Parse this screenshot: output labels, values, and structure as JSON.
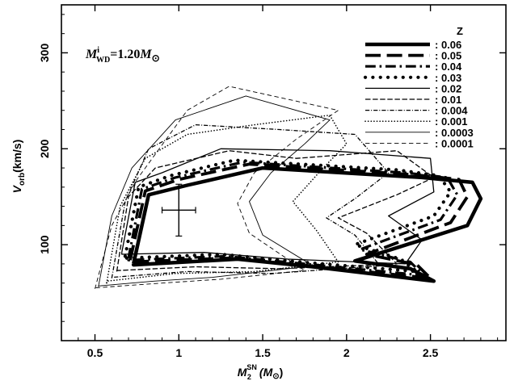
{
  "chart_data": {
    "type": "line",
    "title": "",
    "annotation": {
      "symbol": "M",
      "sup": "i",
      "sub": "WD",
      "text": "=1.20",
      "unit": "M",
      "unit_sub": "⊙"
    },
    "xlabel": {
      "symbol": "M",
      "sup": "SN",
      "sub": "2",
      "unit": "(M",
      "unit_sub": "⊙",
      "close": ")"
    },
    "ylabel": {
      "symbol": "V",
      "sub": "orb",
      "unit": "(km/s)"
    },
    "xlim": [
      0.3,
      2.95
    ],
    "ylim": [
      0,
      350
    ],
    "xticks": [
      0.5,
      1,
      1.5,
      2,
      2.5
    ],
    "xtick_labels": [
      "0.5",
      "1",
      "1.5",
      "2",
      "2.5"
    ],
    "yticks": [
      100,
      200,
      300
    ],
    "ytick_labels": [
      "100",
      "200",
      "300"
    ],
    "grid": false,
    "legend": {
      "title": "Z",
      "placement": "top-right"
    },
    "observation": {
      "x": 1.0,
      "y": 136,
      "xerr": 0.1,
      "yerr": 27
    },
    "series": [
      {
        "name": "0.06",
        "style": "solid",
        "width": 4.5,
        "x": [
          0.73,
          0.82,
          1.05,
          1.5,
          2.45,
          2.75,
          2.8,
          2.72,
          2.05,
          2.38,
          2.52,
          1.8,
          1.35,
          0.73,
          0.73
        ],
        "y": [
          80,
          152,
          162,
          180,
          170,
          165,
          148,
          120,
          83,
          75,
          62,
          77,
          85,
          79,
          80
        ]
      },
      {
        "name": "0.05",
        "style": "longdash",
        "width": 3.8,
        "x": [
          0.71,
          0.8,
          1.0,
          1.42,
          2.4,
          2.67,
          2.72,
          2.62,
          2.12,
          2.42,
          2.5,
          1.78,
          1.3,
          0.71,
          0.71
        ],
        "y": [
          84,
          156,
          168,
          184,
          173,
          168,
          150,
          123,
          90,
          79,
          65,
          78,
          86,
          82,
          84
        ]
      },
      {
        "name": "0.04",
        "style": "dashdot",
        "width": 3.2,
        "x": [
          0.7,
          0.78,
          0.98,
          1.38,
          2.35,
          2.6,
          2.66,
          2.56,
          2.08,
          2.38,
          2.46,
          1.75,
          1.28,
          0.7,
          0.7
        ],
        "y": [
          86,
          158,
          170,
          186,
          175,
          170,
          152,
          126,
          95,
          82,
          68,
          80,
          88,
          84,
          86
        ]
      },
      {
        "name": "0.03",
        "style": "dotted",
        "width": 4.2,
        "x": [
          0.68,
          0.76,
          0.95,
          1.33,
          2.3,
          2.55,
          2.62,
          2.52,
          2.05,
          2.32,
          2.42,
          1.72,
          1.25,
          0.68,
          0.68
        ],
        "y": [
          88,
          160,
          172,
          188,
          178,
          172,
          155,
          130,
          100,
          85,
          72,
          82,
          90,
          86,
          88
        ]
      },
      {
        "name": "0.02",
        "style": "solid",
        "width": 1.3,
        "x": [
          0.66,
          0.74,
          0.9,
          1.25,
          1.9,
          2.5,
          2.52,
          2.25,
          2.45,
          2.35,
          1.65,
          1.15,
          0.66,
          0.66
        ],
        "y": [
          92,
          165,
          175,
          200,
          198,
          190,
          155,
          130,
          105,
          80,
          85,
          92,
          90,
          92
        ]
      },
      {
        "name": "0.01",
        "style": "longdash",
        "width": 1.3,
        "x": [
          0.63,
          0.7,
          0.86,
          1.3,
          1.7,
          2.3,
          2.52,
          2.3,
          1.95,
          2.12,
          2.3,
          1.6,
          1.1,
          0.63,
          0.63
        ],
        "y": [
          72,
          150,
          180,
          198,
          190,
          198,
          170,
          152,
          128,
          112,
          80,
          75,
          77,
          73,
          72
        ]
      },
      {
        "name": "0.004",
        "style": "dashdot",
        "width": 1.3,
        "x": [
          0.6,
          0.68,
          0.82,
          1.1,
          1.6,
          2.05,
          2.25,
          2.05,
          1.88,
          2.05,
          2.2,
          1.55,
          1.05,
          0.6,
          0.6
        ],
        "y": [
          65,
          145,
          200,
          225,
          220,
          215,
          175,
          148,
          128,
          110,
          78,
          70,
          72,
          66,
          65
        ]
      },
      {
        "name": "0.001",
        "style": "dotted",
        "width": 1.6,
        "x": [
          0.57,
          0.65,
          0.8,
          1.05,
          1.45,
          1.9,
          2.0,
          1.85,
          1.68,
          1.82,
          1.95,
          1.45,
          0.98,
          0.57,
          0.57
        ],
        "y": [
          60,
          140,
          190,
          215,
          225,
          235,
          205,
          178,
          145,
          115,
          82,
          72,
          70,
          62,
          60
        ]
      },
      {
        "name": "0.0003",
        "style": "solid",
        "width": 0.9,
        "x": [
          0.52,
          0.6,
          0.72,
          0.98,
          1.4,
          1.9,
          1.75,
          1.55,
          1.42,
          1.5,
          1.8,
          1.2,
          0.85,
          0.52,
          0.52
        ],
        "y": [
          56,
          130,
          180,
          230,
          255,
          230,
          205,
          175,
          145,
          110,
          78,
          66,
          62,
          57,
          56
        ]
      },
      {
        "name": "0.0001",
        "style": "dashed",
        "width": 0.9,
        "x": [
          0.5,
          0.6,
          0.75,
          1.05,
          1.3,
          1.95,
          1.7,
          1.45,
          1.35,
          1.42,
          1.75,
          1.25,
          0.9,
          0.5,
          0.5
        ],
        "y": [
          54,
          120,
          168,
          240,
          265,
          240,
          210,
          175,
          143,
          112,
          73,
          64,
          60,
          55,
          54
        ]
      }
    ]
  }
}
